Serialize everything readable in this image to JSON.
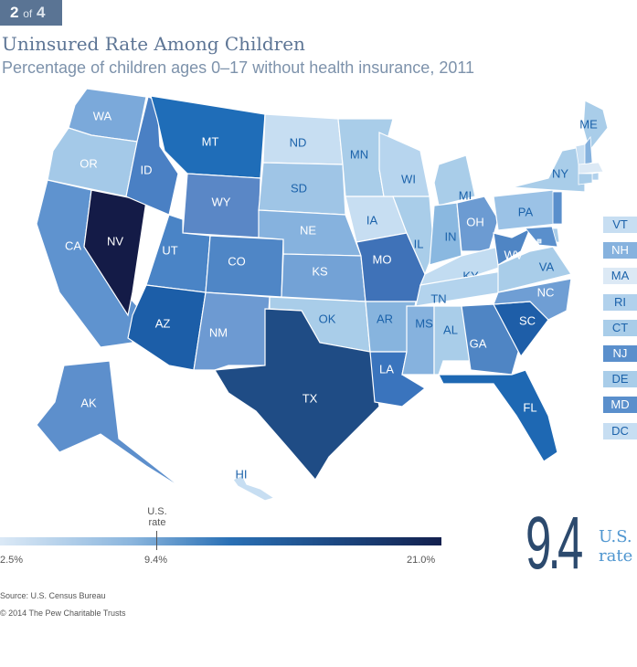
{
  "badge": {
    "current": "2",
    "of": "of",
    "total": "4"
  },
  "title": "Uninsured Rate Among Children",
  "subtitle": "Percentage of children ages 0–17 without health insurance, 2011",
  "states": [
    {
      "abbr": "WA",
      "color": "#7ba9da"
    },
    {
      "abbr": "OR",
      "color": "#a4c9e8"
    },
    {
      "abbr": "CA",
      "color": "#5f93cf"
    },
    {
      "abbr": "NV",
      "color": "#141b47"
    },
    {
      "abbr": "ID",
      "color": "#4a80c4"
    },
    {
      "abbr": "MT",
      "color": "#1f6db8"
    },
    {
      "abbr": "WY",
      "color": "#5a87c6"
    },
    {
      "abbr": "UT",
      "color": "#4a84c6"
    },
    {
      "abbr": "CO",
      "color": "#4f86c6"
    },
    {
      "abbr": "AZ",
      "color": "#1c5ea8"
    },
    {
      "abbr": "NM",
      "color": "#6d9ad2"
    },
    {
      "abbr": "ND",
      "color": "#c7def2"
    },
    {
      "abbr": "SD",
      "color": "#9fc5e6"
    },
    {
      "abbr": "NE",
      "color": "#86b2de"
    },
    {
      "abbr": "KS",
      "color": "#73a2d6"
    },
    {
      "abbr": "OK",
      "color": "#a9cde9"
    },
    {
      "abbr": "TX",
      "color": "#1f4c85"
    },
    {
      "abbr": "MN",
      "color": "#a9cde9"
    },
    {
      "abbr": "IA",
      "color": "#c7def2"
    },
    {
      "abbr": "MO",
      "color": "#3f72b8"
    },
    {
      "abbr": "AR",
      "color": "#87b4de"
    },
    {
      "abbr": "LA",
      "color": "#3a74bd"
    },
    {
      "abbr": "WI",
      "color": "#b7d5ee"
    },
    {
      "abbr": "IL",
      "color": "#a9cde9"
    },
    {
      "abbr": "MI",
      "color": "#a9cde9"
    },
    {
      "abbr": "IN",
      "color": "#8ab8e0"
    },
    {
      "abbr": "OH",
      "color": "#6c9bd2"
    },
    {
      "abbr": "KY",
      "color": "#c2dcf1"
    },
    {
      "abbr": "TN",
      "color": "#b3d3ed"
    },
    {
      "abbr": "MS",
      "color": "#86b2de"
    },
    {
      "abbr": "AL",
      "color": "#a9cde9"
    },
    {
      "abbr": "GA",
      "color": "#4f85c4"
    },
    {
      "abbr": "FL",
      "color": "#1e68b3"
    },
    {
      "abbr": "SC",
      "color": "#1e5ea8"
    },
    {
      "abbr": "NC",
      "color": "#6f9ed4"
    },
    {
      "abbr": "VA",
      "color": "#a9cde9"
    },
    {
      "abbr": "WV",
      "color": "#4f85c4"
    },
    {
      "abbr": "PA",
      "color": "#9bc2e6"
    },
    {
      "abbr": "NY",
      "color": "#a9cde9"
    },
    {
      "abbr": "ME",
      "color": "#a9cde9"
    },
    {
      "abbr": "AK",
      "color": "#5d8fcc"
    },
    {
      "abbr": "HI",
      "color": "#c7def2"
    }
  ],
  "small_states": [
    {
      "abbr": "VT",
      "color": "#c7def2"
    },
    {
      "abbr": "NH",
      "color": "#86b2de"
    },
    {
      "abbr": "MA",
      "color": "#dce9f5"
    },
    {
      "abbr": "RI",
      "color": "#b1d1ec"
    },
    {
      "abbr": "CT",
      "color": "#a9cde9"
    },
    {
      "abbr": "NJ",
      "color": "#5a8fcc"
    },
    {
      "abbr": "DE",
      "color": "#a9cde9"
    },
    {
      "abbr": "MD",
      "color": "#5a8fcc"
    },
    {
      "abbr": "DC",
      "color": "#c7def2"
    }
  ],
  "legend": {
    "min": "2.5%",
    "max": "21.0%",
    "us_value": "9.4%",
    "us_label_1": "U.S.",
    "us_label_2": "rate",
    "scale": [
      2.5,
      21.0
    ],
    "us_rate": 9.4,
    "colors": [
      "#dbe9f6",
      "#2a70b5",
      "#13204e"
    ]
  },
  "headline": {
    "value": "9.4",
    "label_1": "U.S.",
    "label_2": "rate"
  },
  "source": "Source: U.S. Census Bureau",
  "copyright": "© 2014 The Pew Charitable Trusts"
}
